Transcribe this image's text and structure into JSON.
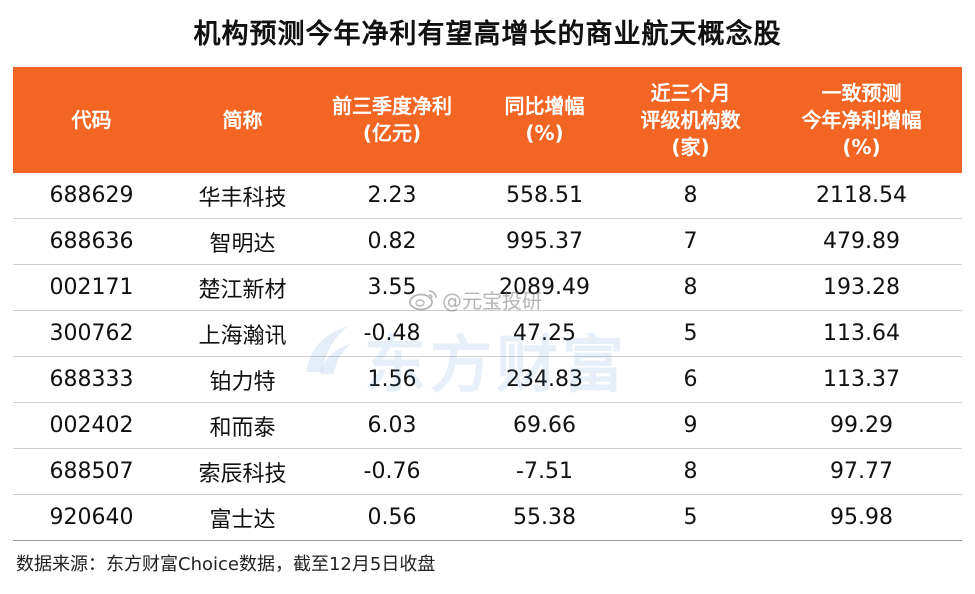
{
  "title": "机构预测今年净利有望高增长的商业航天概念股",
  "accent_color": "#f26522",
  "table": {
    "headers": [
      [
        "代码"
      ],
      [
        "简称"
      ],
      [
        "前三季度净利",
        "(亿元)"
      ],
      [
        "同比增幅",
        "(%)"
      ],
      [
        "近三个月",
        "评级机构数",
        "(家)"
      ],
      [
        "一致预测",
        "今年净利增幅",
        "(%)"
      ]
    ],
    "rows": [
      [
        "688629",
        "华丰科技",
        "2.23",
        "558.51",
        "8",
        "2118.54"
      ],
      [
        "688636",
        "智明达",
        "0.82",
        "995.37",
        "7",
        "479.89"
      ],
      [
        "002171",
        "楚江新材",
        "3.55",
        "2089.49",
        "8",
        "193.28"
      ],
      [
        "300762",
        "上海瀚讯",
        "-0.48",
        "47.25",
        "5",
        "113.64"
      ],
      [
        "688333",
        "铂力特",
        "1.56",
        "234.83",
        "6",
        "113.37"
      ],
      [
        "002402",
        "和而泰",
        "6.03",
        "69.66",
        "9",
        "99.29"
      ],
      [
        "688507",
        "索辰科技",
        "-0.76",
        "-7.51",
        "8",
        "97.77"
      ],
      [
        "920640",
        "富士达",
        "0.56",
        "55.38",
        "5",
        "95.98"
      ]
    ]
  },
  "watermarks": {
    "weibo_icon": "weibo-icon",
    "weibo_text": "@元宝投研",
    "brand_icon": "eastmoney-logo-icon",
    "brand_text": "东方财富"
  },
  "footnote": "数据来源：东方财富Choice数据，截至12月5日收盘"
}
